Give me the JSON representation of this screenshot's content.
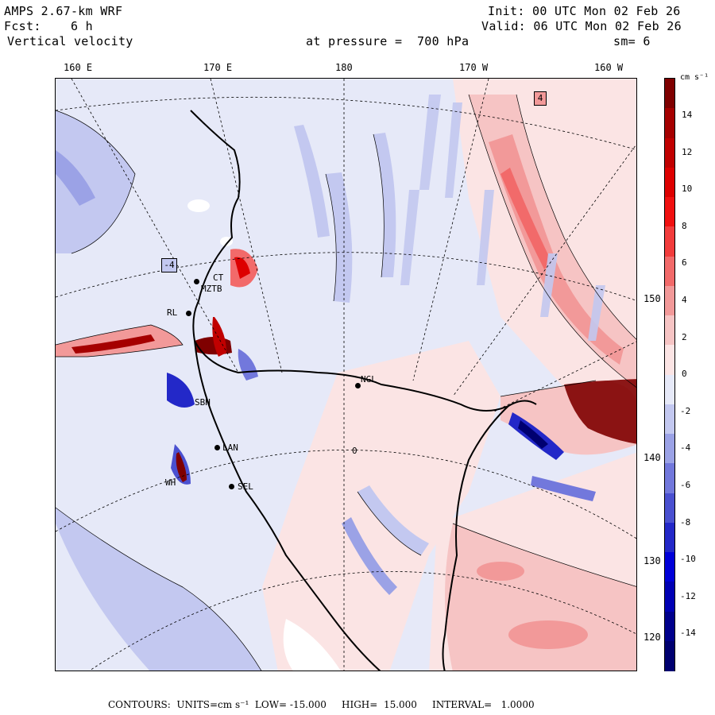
{
  "header": {
    "model": "AMPS 2.67-km WRF",
    "init": "Init: 00 UTC Mon 02 Feb 26",
    "fcst": "Fcst:    6 h",
    "valid": "Valid: 06 UTC Mon 02 Feb 26",
    "field": "Vertical velocity",
    "level": "at pressure =  700 hPa",
    "smooth": "sm= 6"
  },
  "longitude_labels": [
    "160 E",
    "170 E",
    "180",
    "170 W",
    "160 W"
  ],
  "latitude_labels": [
    "150 W",
    "140 W",
    "130 W",
    "120 W"
  ],
  "colorbar": {
    "units": "cm s⁻¹",
    "ticks": [
      "14",
      "12",
      "10",
      "8",
      "6",
      "4",
      "2",
      "0",
      "-2",
      "-4",
      "-6",
      "-8",
      "-10",
      "-12",
      "-14"
    ],
    "colors": [
      "#7f0000",
      "#a50000",
      "#c00000",
      "#dd0000",
      "#f01010",
      "#f23c3c",
      "#f26a6a",
      "#f29999",
      "#f6c4c4",
      "#fbe4e4",
      "#e6e9f8",
      "#c3c8f0",
      "#9ba2e6",
      "#7278dc",
      "#4a50d0",
      "#2328c8",
      "#0000d8",
      "#0000b4",
      "#00008c",
      "#000070"
    ]
  },
  "stations": [
    {
      "id": "CT",
      "label": "CT"
    },
    {
      "id": "MZTB",
      "label": "MZTB"
    },
    {
      "id": "RL",
      "label": "RL"
    },
    {
      "id": "NGL",
      "label": "NGL"
    },
    {
      "id": "SBH",
      "label": "SBH"
    },
    {
      "id": "LAN",
      "label": "LAN"
    },
    {
      "id": "SEL",
      "label": "SEL"
    },
    {
      "id": "WH",
      "label": "WH"
    }
  ],
  "extrema_markers": [
    "-4",
    "4"
  ],
  "contour_zero_label": "0",
  "footer": "CONTOURS:  UNITS=cm s⁻¹  LOW= -15.000     HIGH=  15.000     INTERVAL=   1.0000"
}
